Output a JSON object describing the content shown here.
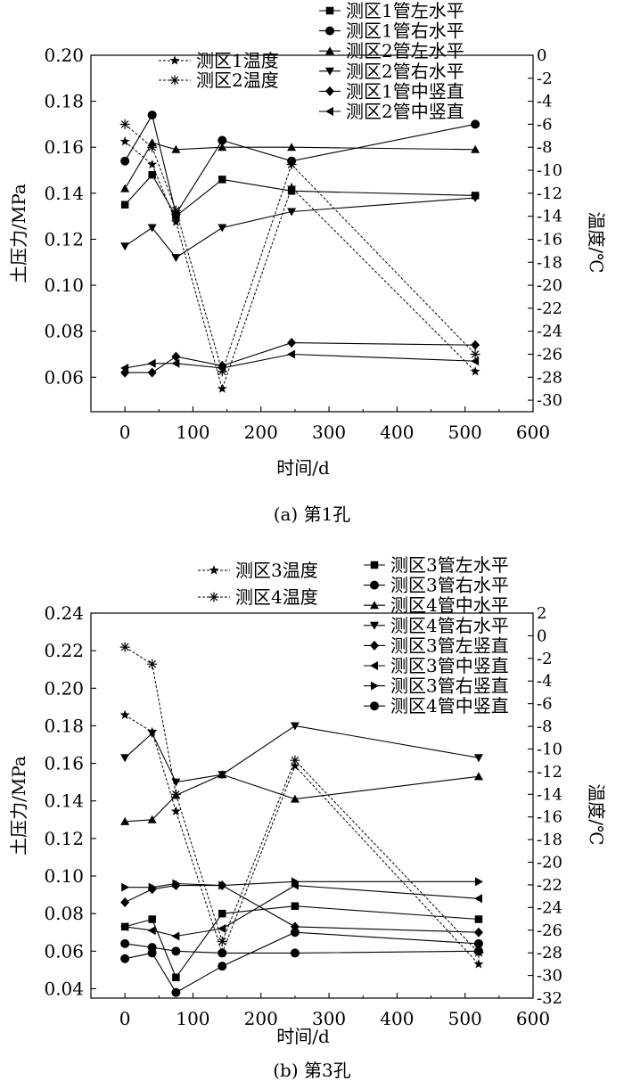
{
  "chart_data": [
    {
      "type": "line",
      "caption": "(a) 第1孔",
      "xlabel": "时间/d",
      "ylabel": "土压力/MPa",
      "y2label": "温度/℃",
      "xlim": [
        -50,
        600
      ],
      "ylim": [
        0.045,
        0.2
      ],
      "y2lim": [
        -31,
        0
      ],
      "xticks": [
        0,
        100,
        200,
        300,
        400,
        500,
        600
      ],
      "yticks": [
        0.06,
        0.08,
        0.1,
        0.12,
        0.14,
        0.16,
        0.18,
        0.2
      ],
      "ytick_labels": [
        "0.06",
        "0.08",
        "0.10",
        "0.12",
        "0.14",
        "0.16",
        "0.18",
        "0.20"
      ],
      "y2ticks": [
        -30,
        -28,
        -26,
        -24,
        -22,
        -20,
        -18,
        -16,
        -14,
        -12,
        -10,
        -8,
        -6,
        -4,
        -2,
        0
      ],
      "legend_left": [
        "测区1温度",
        "测区2温度"
      ],
      "legend_right": [
        "测区1管左水平",
        "测区1管右水平",
        "测区2管左水平",
        "测区2管右水平",
        "测区1管中竖直",
        "测区2管中竖直"
      ],
      "x": [
        0,
        40,
        75,
        143,
        245,
        515
      ],
      "series": [
        {
          "name": "测区1管左水平",
          "marker": "square",
          "values": [
            0.135,
            0.148,
            0.13,
            0.146,
            0.141,
            0.139
          ]
        },
        {
          "name": "测区1管右水平",
          "marker": "circle",
          "values": [
            0.154,
            0.174,
            0.131,
            0.163,
            0.154,
            0.17
          ]
        },
        {
          "name": "测区2管左水平",
          "marker": "triangle-up",
          "values": [
            0.142,
            0.162,
            0.159,
            0.16,
            0.16,
            0.159
          ]
        },
        {
          "name": "测区2管右水平",
          "marker": "triangle-down",
          "values": [
            0.117,
            0.125,
            0.112,
            0.125,
            0.132,
            0.138
          ]
        },
        {
          "name": "测区1管中竖直",
          "marker": "diamond",
          "values": [
            0.062,
            0.062,
            0.069,
            0.065,
            0.075,
            0.074
          ]
        },
        {
          "name": "测区2管中竖直",
          "marker": "triangle-left",
          "values": [
            0.064,
            0.066,
            0.066,
            0.064,
            0.07,
            0.067
          ]
        }
      ],
      "temp_series": [
        {
          "name": "测区1温度",
          "marker": "star",
          "values": [
            -7.5,
            -9.5,
            -14.5,
            -29,
            -11.5,
            -27.5
          ]
        },
        {
          "name": "测区2温度",
          "marker": "asterisk",
          "values": [
            -6,
            -8,
            -13.5,
            -27.5,
            -9.5,
            -26
          ]
        }
      ]
    },
    {
      "type": "line",
      "caption": "(b) 第3孔",
      "xlabel": "时间/d",
      "ylabel": "土压力/MPa",
      "y2label": "温度/℃",
      "xlim": [
        -50,
        600
      ],
      "ylim": [
        0.035,
        0.24
      ],
      "y2lim": [
        -32,
        2
      ],
      "xticks": [
        0,
        100,
        200,
        300,
        400,
        500,
        600
      ],
      "yticks": [
        0.04,
        0.06,
        0.08,
        0.1,
        0.12,
        0.14,
        0.16,
        0.18,
        0.2,
        0.22,
        0.24
      ],
      "ytick_labels": [
        "0.04",
        "0.06",
        "0.08",
        "0.10",
        "0.12",
        "0.14",
        "0.16",
        "0.18",
        "0.20",
        "0.22",
        "0.24"
      ],
      "y2ticks": [
        -32,
        -30,
        -28,
        -26,
        -24,
        -22,
        -20,
        -18,
        -16,
        -14,
        -12,
        -10,
        -8,
        -6,
        -4,
        -2,
        0,
        2
      ],
      "legend_left": [
        "测区3温度",
        "测区4温度"
      ],
      "legend_right": [
        "测区3管左水平",
        "测区3管右水平",
        "测区4管中水平",
        "测区4管右水平",
        "测区3管左竖直",
        "测区3管中竖直",
        "测区3管右竖直",
        "测区4管中竖直"
      ],
      "x": [
        0,
        40,
        75,
        143,
        250,
        520
      ],
      "series": [
        {
          "name": "测区3管左水平",
          "marker": "square",
          "values": [
            0.073,
            0.077,
            0.046,
            0.08,
            0.084,
            0.077
          ]
        },
        {
          "name": "测区3管右水平",
          "marker": "circle",
          "values": [
            0.056,
            0.059,
            0.038,
            0.052,
            0.07,
            0.064
          ]
        },
        {
          "name": "测区4管中水平",
          "marker": "triangle-up",
          "values": [
            0.129,
            0.13,
            0.143,
            0.154,
            0.141,
            0.153
          ]
        },
        {
          "name": "测区4管右水平",
          "marker": "triangle-down",
          "values": [
            0.163,
            0.176,
            0.15,
            0.154,
            0.18,
            0.163
          ]
        },
        {
          "name": "测区3管左竖直",
          "marker": "diamond",
          "values": [
            0.086,
            0.093,
            0.095,
            0.095,
            0.073,
            0.07
          ]
        },
        {
          "name": "测区3管中竖直",
          "marker": "triangle-left",
          "values": [
            0.073,
            0.071,
            0.068,
            0.072,
            0.095,
            0.088
          ]
        },
        {
          "name": "测区3管右竖直",
          "marker": "triangle-right",
          "values": [
            0.094,
            0.094,
            0.096,
            0.095,
            0.097,
            0.097
          ]
        },
        {
          "name": "测区4管中竖直",
          "marker": "circle",
          "values": [
            0.064,
            0.062,
            0.06,
            0.059,
            0.059,
            0.06
          ]
        }
      ],
      "temp_series": [
        {
          "name": "测区3温度",
          "marker": "star",
          "values": [
            -7,
            -8.5,
            -15.5,
            -28,
            -11.5,
            -29
          ]
        },
        {
          "name": "测区4温度",
          "marker": "asterisk",
          "values": [
            -1,
            -2.5,
            -14,
            -27,
            -11,
            -28
          ]
        }
      ]
    }
  ]
}
